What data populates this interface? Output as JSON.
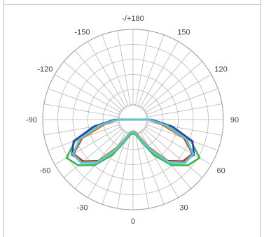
{
  "chart_data": {
    "type": "polar",
    "title": "",
    "angle_tick_labels": [
      {
        "angle": 0,
        "text": "0"
      },
      {
        "angle": 30,
        "text": "30"
      },
      {
        "angle": 60,
        "text": "60"
      },
      {
        "angle": 90,
        "text": "90"
      },
      {
        "angle": 120,
        "text": "120"
      },
      {
        "angle": 150,
        "text": "150"
      },
      {
        "angle": 180,
        "text": "-/+180"
      },
      {
        "angle": -150,
        "text": "-150"
      },
      {
        "angle": -120,
        "text": "-120"
      },
      {
        "angle": -90,
        "text": "-90"
      },
      {
        "angle": -60,
        "text": "-60"
      },
      {
        "angle": -30,
        "text": "-30"
      }
    ],
    "radial_rings": 6,
    "angle_step": 10,
    "grid": true,
    "colors": {
      "grid": "#b8b8b8",
      "axis_text": "#444444",
      "series": [
        "#39b54a",
        "#c0392b",
        "#2a3fa8",
        "#e5a21a",
        "#4ec9e6"
      ]
    },
    "series": [
      {
        "color": "#39b54a",
        "angles": [
          0,
          10,
          20,
          30,
          40,
          50,
          60,
          70,
          80,
          90
        ],
        "r": [
          0.15,
          0.17,
          0.25,
          0.45,
          0.66,
          0.79,
          0.85,
          0.68,
          0.38,
          0.18
        ]
      },
      {
        "color": "#c0392b",
        "angles": [
          0,
          10,
          20,
          30,
          40,
          50,
          60,
          70,
          80,
          90
        ],
        "r": [
          0.13,
          0.14,
          0.2,
          0.37,
          0.6,
          0.72,
          0.76,
          0.6,
          0.33,
          0.17
        ]
      },
      {
        "color": "#2a3fa8",
        "angles": [
          0,
          10,
          20,
          30,
          40,
          50,
          60,
          70,
          80,
          90
        ],
        "r": [
          0.13,
          0.14,
          0.2,
          0.36,
          0.6,
          0.73,
          0.78,
          0.7,
          0.44,
          0.2
        ]
      },
      {
        "color": "#e5a21a",
        "angles": [
          0,
          10,
          20,
          30,
          40,
          50,
          60,
          70,
          80,
          90
        ],
        "r": [
          0.13,
          0.14,
          0.2,
          0.37,
          0.61,
          0.74,
          0.77,
          0.62,
          0.35,
          0.17
        ]
      },
      {
        "color": "#4ec9e6",
        "angles": [
          0,
          10,
          20,
          30,
          40,
          50,
          60,
          70,
          80,
          90
        ],
        "r": [
          0.14,
          0.15,
          0.22,
          0.4,
          0.63,
          0.75,
          0.77,
          0.63,
          0.38,
          0.18
        ]
      }
    ]
  }
}
